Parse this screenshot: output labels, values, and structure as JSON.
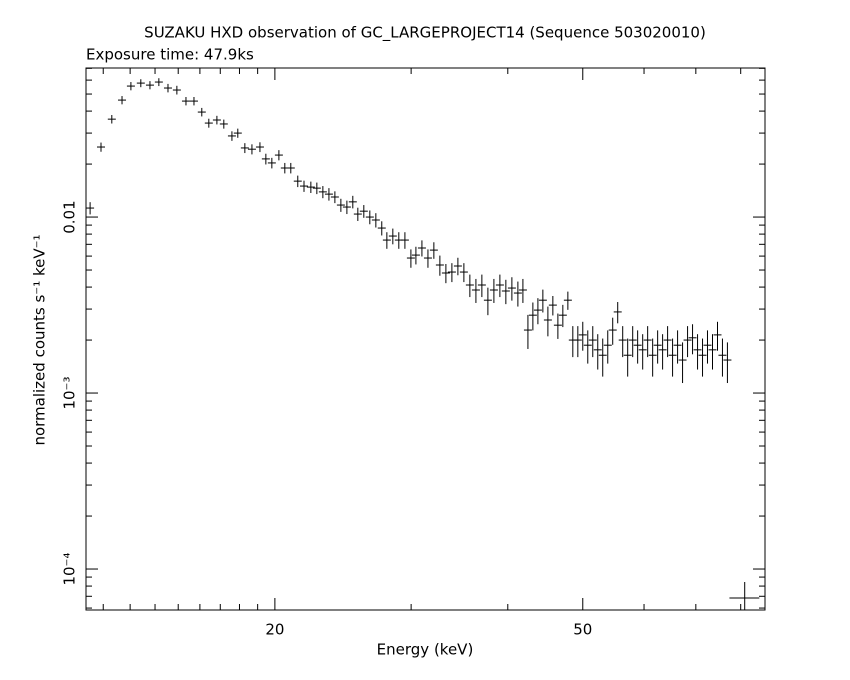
{
  "chart_data": {
    "type": "scatter",
    "title": "SUZAKU HXD observation of GC_LARGEPROJECT14 (Sequence 503020010)",
    "subtitle": "Exposure time: 47.9ks",
    "x_label": "Energy (keV)",
    "y_label": "normalized counts s⁻¹ keV⁻¹",
    "x_log": true,
    "y_log": true,
    "xlim": [
      11.4,
      86
    ],
    "ylim": [
      5.85e-05,
      0.0703
    ],
    "xticks": [
      20,
      50
    ],
    "x_minor_ticks": [
      12,
      13,
      14,
      15,
      16,
      17,
      18,
      19,
      30,
      40,
      60,
      70,
      80
    ],
    "yticks": [
      {
        "value": 0.0001,
        "label": "10⁻⁴"
      },
      {
        "value": 0.001,
        "label": "10⁻³"
      },
      0.01
    ],
    "y_minor_ticks": [
      6e-05,
      7e-05,
      8e-05,
      9e-05,
      0.0002,
      0.0003,
      0.0004,
      0.0005,
      0.0006,
      0.0007,
      0.0008,
      0.0009,
      0.002,
      0.003,
      0.004,
      0.005,
      0.006,
      0.007,
      0.008,
      0.009,
      0.02,
      0.03,
      0.04,
      0.05,
      0.06,
      0.07
    ],
    "series": [
      {
        "color": "#000000",
        "x": [
          11.54,
          11.92,
          12.31,
          12.69,
          13.03,
          13.42,
          13.79,
          14.16,
          14.55,
          14.94,
          15.35,
          15.72,
          16.09,
          16.43,
          16.83,
          17.18,
          17.6,
          17.91,
          18.29,
          18.68,
          19.13,
          19.47,
          19.82,
          20.24,
          20.6,
          20.97,
          21.41,
          21.81,
          22.26,
          22.66,
          23.07,
          23.49,
          23.91,
          24.34,
          24.78,
          25.22,
          25.6,
          26.06,
          26.53,
          27.01,
          27.49,
          27.91,
          28.41,
          28.92,
          29.45,
          29.98,
          30.43,
          30.98,
          31.54,
          32.1,
          32.68,
          33.27,
          33.87,
          34.48,
          35.1,
          35.73,
          36.38,
          37.03,
          37.7,
          38.38,
          39.07,
          39.77,
          40.49,
          41.22,
          41.84,
          42.47,
          43.1,
          43.75,
          44.4,
          45.07,
          45.74,
          46.43,
          47.12,
          47.83,
          48.54,
          49.27,
          50,
          50.75,
          51.51,
          52.28,
          53.06,
          53.86,
          54.66,
          55.48,
          56.31,
          57.15,
          58.01,
          58.87,
          59.76,
          60.65,
          61.56,
          62.48,
          63.41,
          64.36,
          65.32,
          66.3,
          67.29,
          68.3,
          69.32,
          70.36,
          71.41,
          72.47,
          73.56,
          74.66,
          75.77,
          76.9
        ],
        "values": [
          0.01125,
          0.025,
          0.036,
          0.0462,
          0.0555,
          0.0577,
          0.0562,
          0.0585,
          0.0541,
          0.0527,
          0.0456,
          0.0456,
          0.0395,
          0.0342,
          0.0356,
          0.0338,
          0.0289,
          0.03,
          0.0247,
          0.0243,
          0.025,
          0.0214,
          0.0203,
          0.0225,
          0.019,
          0.019,
          0.016,
          0.015,
          0.0148,
          0.0146,
          0.0139,
          0.0135,
          0.013,
          0.0117,
          0.0114,
          0.0122,
          0.0104,
          0.0108,
          0.01,
          0.00962,
          0.00866,
          0.0074,
          0.0078,
          0.0074,
          0.0074,
          0.00585,
          0.00608,
          0.00667,
          0.00585,
          0.00649,
          0.00534,
          0.00481,
          0.00487,
          0.00527,
          0.00487,
          0.00411,
          0.00385,
          0.00411,
          0.00337,
          0.00385,
          0.00411,
          0.0038,
          0.00395,
          0.0037,
          0.00385,
          0.00228,
          0.00277,
          0.00296,
          0.00337,
          0.0026,
          0.00316,
          0.00243,
          0.00277,
          0.00337,
          0.002,
          0.002,
          0.00214,
          0.00187,
          0.002,
          0.00176,
          0.00164,
          0.00187,
          0.00228,
          0.00289,
          0.002,
          0.00164,
          0.002,
          0.00187,
          0.00176,
          0.002,
          0.00164,
          0.00187,
          0.00176,
          0.002,
          0.00164,
          0.00187,
          0.00154,
          0.002,
          0.00206,
          0.00176,
          0.00164,
          0.00187,
          0.00176,
          0.00214,
          0.00164,
          0.00154
        ],
        "yerr": [
          0.0009,
          0.0015,
          0.002,
          0.0025,
          0.003,
          0.003,
          0.003,
          0.003,
          0.003,
          0.003,
          0.0025,
          0.0025,
          0.0022,
          0.002,
          0.002,
          0.002,
          0.0018,
          0.0018,
          0.0016,
          0.0016,
          0.0016,
          0.0015,
          0.0014,
          0.0015,
          0.0013,
          0.0013,
          0.0012,
          0.0011,
          0.0011,
          0.0011,
          0.0011,
          0.0011,
          0.001,
          0.001,
          0.001,
          0.001,
          0.0009,
          0.0009,
          0.0009,
          0.0009,
          0.0008,
          0.0008,
          0.0008,
          0.0008,
          0.0008,
          0.0007,
          0.0007,
          0.0007,
          0.0007,
          0.0007,
          0.0007,
          0.0006,
          0.0006,
          0.0006,
          0.0006,
          0.0006,
          0.0006,
          0.0006,
          0.0006,
          0.0006,
          0.0006,
          0.0006,
          0.0006,
          0.0006,
          0.0006,
          0.0005,
          0.0005,
          0.0005,
          0.0005,
          0.0005,
          0.0004,
          0.0004,
          0.0004,
          0.0004,
          0.0004,
          0.0004,
          0.0004,
          0.0004,
          0.0004,
          0.0004,
          0.0004,
          0.0004,
          0.0004,
          0.0004,
          0.0004,
          0.0004,
          0.0004,
          0.0004,
          0.0004,
          0.0004,
          0.0004,
          0.0004,
          0.0004,
          0.0004,
          0.0004,
          0.0004,
          0.0004,
          0.0004,
          0.0004,
          0.0004,
          0.0004,
          0.0004,
          0.0004,
          0.0004,
          0.0004,
          0.0004
        ]
      },
      {
        "color": "#000000",
        "x": [
          80.96
        ],
        "values": [
          6.84e-05
        ],
        "xerr": [
          3.6
        ],
        "yerr": [
          1.6e-05
        ]
      }
    ]
  }
}
